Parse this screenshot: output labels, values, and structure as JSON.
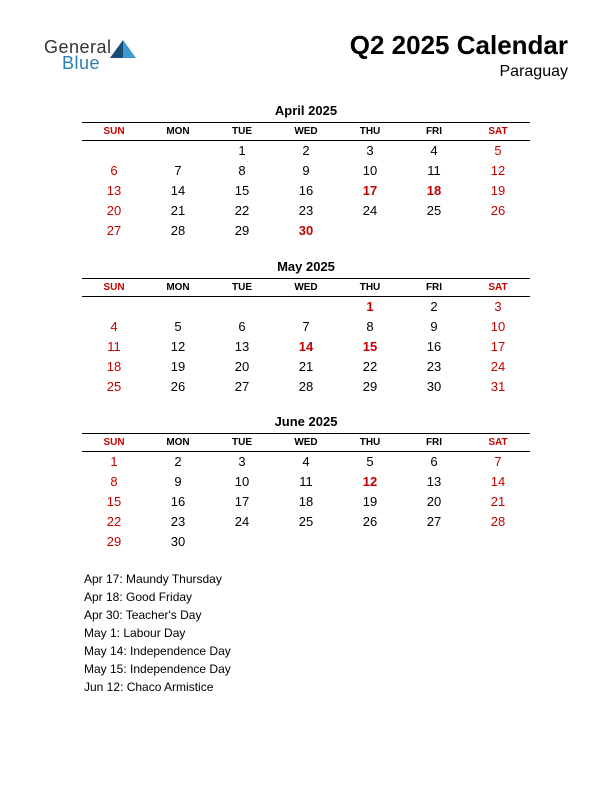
{
  "logo": {
    "general": "General",
    "blue": "Blue",
    "tri_color_dark": "#1a4d73",
    "tri_color_light": "#3a9bd4"
  },
  "header": {
    "title": "Q2 2025 Calendar",
    "subtitle": "Paraguay"
  },
  "day_headers": [
    "SUN",
    "MON",
    "TUE",
    "WED",
    "THU",
    "FRI",
    "SAT"
  ],
  "weekend_cols": [
    0,
    6
  ],
  "colors": {
    "weekend": "#c40000",
    "text": "#000000",
    "border": "#000000"
  },
  "months": [
    {
      "title": "April 2025",
      "weeks": [
        [
          "",
          "",
          "1",
          "2",
          "3",
          "4",
          "5"
        ],
        [
          "6",
          "7",
          "8",
          "9",
          "10",
          "11",
          "12"
        ],
        [
          "13",
          "14",
          "15",
          "16",
          "17",
          "18",
          "19"
        ],
        [
          "20",
          "21",
          "22",
          "23",
          "24",
          "25",
          "26"
        ],
        [
          "27",
          "28",
          "29",
          "30",
          "",
          "",
          ""
        ]
      ],
      "holidays": [
        [
          3,
          4
        ],
        [
          3,
          5
        ],
        [
          5,
          3
        ]
      ]
    },
    {
      "title": "May 2025",
      "weeks": [
        [
          "",
          "",
          "",
          "",
          "1",
          "2",
          "3"
        ],
        [
          "4",
          "5",
          "6",
          "7",
          "8",
          "9",
          "10"
        ],
        [
          "11",
          "12",
          "13",
          "14",
          "15",
          "16",
          "17"
        ],
        [
          "18",
          "19",
          "20",
          "21",
          "22",
          "23",
          "24"
        ],
        [
          "25",
          "26",
          "27",
          "28",
          "29",
          "30",
          "31"
        ]
      ],
      "holidays": [
        [
          1,
          4
        ],
        [
          3,
          3
        ],
        [
          3,
          4
        ]
      ]
    },
    {
      "title": "June 2025",
      "weeks": [
        [
          "1",
          "2",
          "3",
          "4",
          "5",
          "6",
          "7"
        ],
        [
          "8",
          "9",
          "10",
          "11",
          "12",
          "13",
          "14"
        ],
        [
          "15",
          "16",
          "17",
          "18",
          "19",
          "20",
          "21"
        ],
        [
          "22",
          "23",
          "24",
          "25",
          "26",
          "27",
          "28"
        ],
        [
          "29",
          "30",
          "",
          "",
          "",
          "",
          ""
        ]
      ],
      "holidays": [
        [
          2,
          4
        ]
      ]
    }
  ],
  "holiday_list": [
    "Apr 17: Maundy Thursday",
    "Apr 18: Good Friday",
    "Apr 30: Teacher's Day",
    "May 1: Labour Day",
    "May 14: Independence Day",
    "May 15: Independence Day",
    "Jun 12: Chaco Armistice"
  ]
}
